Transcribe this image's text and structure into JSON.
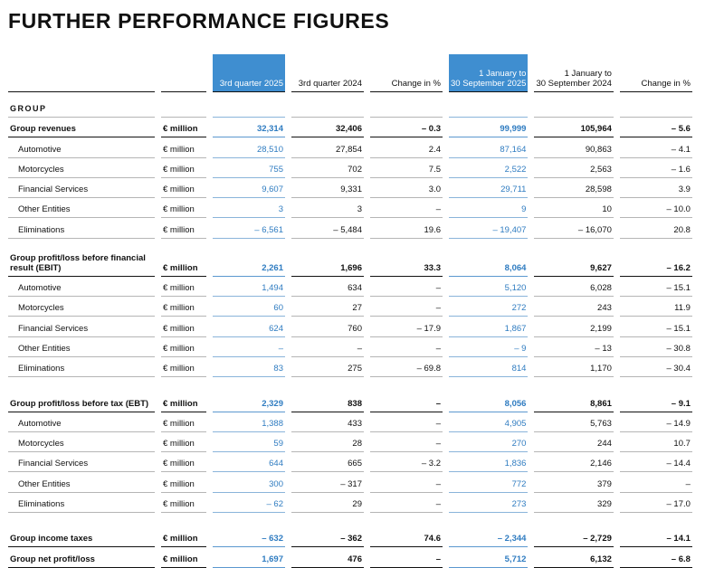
{
  "header": {
    "title": "FURTHER PERFORMANCE FIGURES"
  },
  "table": {
    "columns": [
      {
        "lines": [
          "3rd quarter 2025"
        ],
        "highlight": true
      },
      {
        "lines": [
          "3rd quarter 2024"
        ],
        "highlight": false
      },
      {
        "lines": [
          "Change in %"
        ],
        "highlight": false
      },
      {
        "lines": [
          "1 January to",
          "30 September 2025"
        ],
        "highlight": true
      },
      {
        "lines": [
          "1 January to",
          "30 September 2024"
        ],
        "highlight": false
      },
      {
        "lines": [
          "Change in %"
        ],
        "highlight": false
      }
    ],
    "rows": [
      {
        "label": "GROUP",
        "style": "heading"
      },
      {
        "label": "Group revenues",
        "unit": "€ million",
        "style": "total",
        "values": [
          "32,314",
          "32,406",
          "– 0.3",
          "99,999",
          "105,964",
          "– 5.6"
        ]
      },
      {
        "label": "Automotive",
        "unit": "€ million",
        "style": "item",
        "values": [
          "28,510",
          "27,854",
          "2.4",
          "87,164",
          "90,863",
          "– 4.1"
        ]
      },
      {
        "label": "Motorcycles",
        "unit": "€ million",
        "style": "item",
        "values": [
          "755",
          "702",
          "7.5",
          "2,522",
          "2,563",
          "– 1.6"
        ]
      },
      {
        "label": "Financial Services",
        "unit": "€ million",
        "style": "item",
        "values": [
          "9,607",
          "9,331",
          "3.0",
          "29,711",
          "28,598",
          "3.9"
        ]
      },
      {
        "label": "Other Entities",
        "unit": "€ million",
        "style": "item",
        "values": [
          "3",
          "3",
          "–",
          "9",
          "10",
          "– 10.0"
        ]
      },
      {
        "label": "Eliminations",
        "unit": "€ million",
        "style": "item",
        "values": [
          "– 6,561",
          "– 5,484",
          "19.6",
          "– 19,407",
          "– 16,070",
          "20.8"
        ]
      },
      {
        "label": "Group profit/loss before financial result (EBIT)",
        "unit": "€ million",
        "style": "total",
        "values": [
          "2,261",
          "1,696",
          "33.3",
          "8,064",
          "9,627",
          "– 16.2"
        ]
      },
      {
        "label": "Automotive",
        "unit": "€ million",
        "style": "item",
        "values": [
          "1,494",
          "634",
          "–",
          "5,120",
          "6,028",
          "– 15.1"
        ]
      },
      {
        "label": "Motorcycles",
        "unit": "€ million",
        "style": "item",
        "values": [
          "60",
          "27",
          "–",
          "272",
          "243",
          "11.9"
        ]
      },
      {
        "label": "Financial Services",
        "unit": "€ million",
        "style": "item",
        "values": [
          "624",
          "760",
          "– 17.9",
          "1,867",
          "2,199",
          "– 15.1"
        ]
      },
      {
        "label": "Other Entities",
        "unit": "€ million",
        "style": "item",
        "values": [
          "–",
          "–",
          "–",
          "– 9",
          "– 13",
          "– 30.8"
        ]
      },
      {
        "label": "Eliminations",
        "unit": "€ million",
        "style": "item",
        "values": [
          "83",
          "275",
          "– 69.8",
          "814",
          "1,170",
          "– 30.4"
        ]
      },
      {
        "label": "Group profit/loss before tax (EBT)",
        "unit": "€ million",
        "style": "total",
        "values": [
          "2,329",
          "838",
          "–",
          "8,056",
          "8,861",
          "– 9.1"
        ]
      },
      {
        "label": "Automotive",
        "unit": "€ million",
        "style": "item",
        "values": [
          "1,388",
          "433",
          "–",
          "4,905",
          "5,763",
          "– 14.9"
        ]
      },
      {
        "label": "Motorcycles",
        "unit": "€ million",
        "style": "item",
        "values": [
          "59",
          "28",
          "–",
          "270",
          "244",
          "10.7"
        ]
      },
      {
        "label": "Financial Services",
        "unit": "€ million",
        "style": "item",
        "values": [
          "644",
          "665",
          "– 3.2",
          "1,836",
          "2,146",
          "– 14.4"
        ]
      },
      {
        "label": "Other Entities",
        "unit": "€ million",
        "style": "item",
        "values": [
          "300",
          "– 317",
          "–",
          "772",
          "379",
          "–"
        ]
      },
      {
        "label": "Eliminations",
        "unit": "€ million",
        "style": "item",
        "values": [
          "– 62",
          "29",
          "–",
          "273",
          "329",
          "– 17.0"
        ]
      },
      {
        "label": "Group income taxes",
        "unit": "€ million",
        "style": "total",
        "values": [
          "– 632",
          "– 362",
          "74.6",
          "– 2,344",
          "– 2,729",
          "– 14.1"
        ]
      },
      {
        "label": "Group net profit/loss",
        "unit": "€ million",
        "style": "total",
        "values": [
          "1,697",
          "476",
          "–",
          "5,712",
          "6,132",
          "– 6.8"
        ]
      }
    ]
  }
}
